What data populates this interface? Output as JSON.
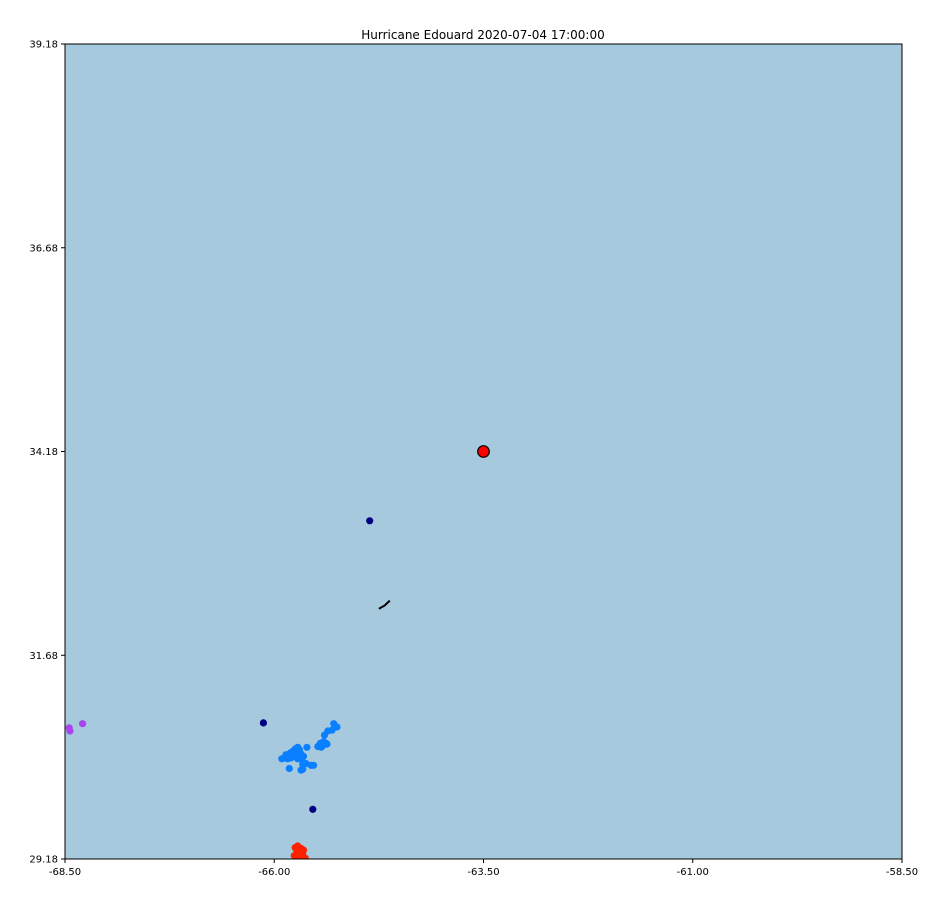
{
  "chart_data": {
    "type": "scatter",
    "title": "Hurricane Edouard 2020-07-04 17:00:00",
    "xlabel": "",
    "ylabel": "",
    "xlim": [
      -68.5,
      -58.5
    ],
    "ylim": [
      29.18,
      39.18
    ],
    "x_ticks": [
      "-68.50",
      "-66.00",
      "-63.50",
      "-61.00",
      "-58.50"
    ],
    "y_ticks": [
      "39.18",
      "36.68",
      "34.18",
      "31.68",
      "29.18"
    ],
    "x_tick_values": [
      -68.5,
      -66.0,
      -63.5,
      -61.0,
      -58.5
    ],
    "y_tick_values": [
      39.18,
      36.68,
      34.18,
      31.68,
      29.18
    ],
    "grid": false,
    "colors": {
      "background": "#a6c9de",
      "storm_center": "#ff0000",
      "navy": "#000080",
      "blue": "#0a7fff",
      "purple": "#aa44ee",
      "red": "#ff2200",
      "track": "#000000"
    },
    "storm_center": {
      "x": -63.5,
      "y": 34.18
    },
    "track_line": [
      {
        "x": -64.75,
        "y": 32.25
      },
      {
        "x": -64.68,
        "y": 32.29
      },
      {
        "x": -64.62,
        "y": 32.35
      }
    ],
    "series": [
      {
        "color_key": "navy",
        "points": [
          {
            "x": -64.86,
            "y": 33.33
          },
          {
            "x": -66.13,
            "y": 30.85
          },
          {
            "x": -65.54,
            "y": 29.79
          }
        ]
      },
      {
        "color_key": "purple",
        "points": [
          {
            "x": -68.45,
            "y": 30.79
          },
          {
            "x": -68.44,
            "y": 30.75
          },
          {
            "x": -68.29,
            "y": 30.84
          }
        ]
      },
      {
        "color_key": "blue",
        "points": [
          {
            "x": -65.29,
            "y": 30.84
          },
          {
            "x": -65.25,
            "y": 30.8
          },
          {
            "x": -65.31,
            "y": 30.76
          },
          {
            "x": -65.36,
            "y": 30.75
          },
          {
            "x": -65.4,
            "y": 30.7
          },
          {
            "x": -65.37,
            "y": 30.59
          },
          {
            "x": -65.42,
            "y": 30.57
          },
          {
            "x": -65.44,
            "y": 30.55
          },
          {
            "x": -65.48,
            "y": 30.56
          },
          {
            "x": -65.41,
            "y": 30.62
          },
          {
            "x": -65.45,
            "y": 30.6
          },
          {
            "x": -65.38,
            "y": 30.6
          },
          {
            "x": -65.61,
            "y": 30.55
          },
          {
            "x": -65.72,
            "y": 30.55
          },
          {
            "x": -65.75,
            "y": 30.53
          },
          {
            "x": -65.78,
            "y": 30.5
          },
          {
            "x": -65.81,
            "y": 30.48
          },
          {
            "x": -65.86,
            "y": 30.46
          },
          {
            "x": -65.88,
            "y": 30.42
          },
          {
            "x": -65.76,
            "y": 30.47
          },
          {
            "x": -65.7,
            "y": 30.52
          },
          {
            "x": -65.68,
            "y": 30.47
          },
          {
            "x": -65.65,
            "y": 30.44
          },
          {
            "x": -65.72,
            "y": 30.41
          },
          {
            "x": -65.8,
            "y": 30.42
          },
          {
            "x": -65.84,
            "y": 30.41
          },
          {
            "x": -65.91,
            "y": 30.41
          },
          {
            "x": -65.67,
            "y": 30.4
          },
          {
            "x": -65.66,
            "y": 30.34
          },
          {
            "x": -65.62,
            "y": 30.35
          },
          {
            "x": -65.56,
            "y": 30.33
          },
          {
            "x": -65.53,
            "y": 30.33
          },
          {
            "x": -65.68,
            "y": 30.27
          },
          {
            "x": -65.66,
            "y": 30.28
          },
          {
            "x": -65.82,
            "y": 30.29
          }
        ]
      },
      {
        "color_key": "red",
        "points": [
          {
            "x": -65.75,
            "y": 29.32
          },
          {
            "x": -65.72,
            "y": 29.34
          },
          {
            "x": -65.68,
            "y": 29.31
          },
          {
            "x": -65.65,
            "y": 29.29
          },
          {
            "x": -65.73,
            "y": 29.28
          },
          {
            "x": -65.7,
            "y": 29.26
          },
          {
            "x": -65.66,
            "y": 29.25
          },
          {
            "x": -65.76,
            "y": 29.22
          },
          {
            "x": -65.71,
            "y": 29.21
          },
          {
            "x": -65.66,
            "y": 29.2
          },
          {
            "x": -65.63,
            "y": 29.19
          },
          {
            "x": -65.74,
            "y": 29.19
          },
          {
            "x": -65.69,
            "y": 29.18
          }
        ]
      }
    ]
  }
}
